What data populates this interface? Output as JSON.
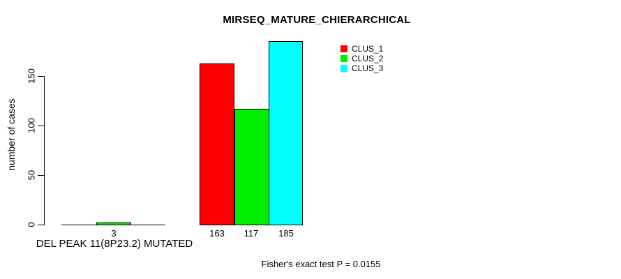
{
  "title": "MIRSEQ_MATURE_CHIERARCHICAL",
  "footer": "Fisher's exact test P = 0.0155",
  "chart_data": {
    "type": "bar",
    "title": "MIRSEQ_MATURE_CHIERARCHICAL",
    "ylabel": "number of cases",
    "ylim": [
      0,
      150
    ],
    "yticks": [
      "0",
      "50",
      "100",
      "150"
    ],
    "grid": false,
    "legend_position": "top-right-inside",
    "categories": [
      "DEL PEAK 11(8P23.2) MUTATED",
      ""
    ],
    "series": [
      {
        "name": "CLUS_1",
        "color": "#ff0000",
        "values": [
          0,
          163
        ]
      },
      {
        "name": "CLUS_2",
        "color": "#00ee00",
        "values": [
          3,
          117
        ]
      },
      {
        "name": "CLUS_3",
        "color": "#00ffff",
        "values": [
          0,
          185
        ]
      }
    ],
    "shown_bar_labels": [
      "3",
      "163",
      "117",
      "185"
    ],
    "annotation": "Fisher's exact test P = 0.0155"
  },
  "colors": {
    "axis": "#000000",
    "background": "#ffffff",
    "text": "#000000"
  }
}
